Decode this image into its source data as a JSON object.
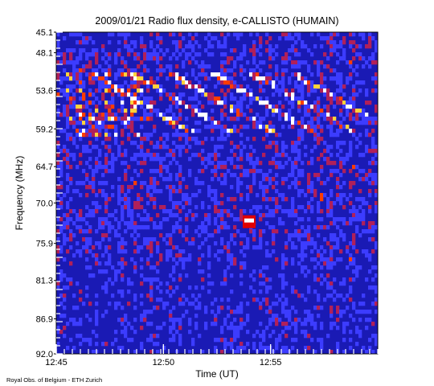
{
  "chart_data": {
    "type": "heatmap",
    "title": "2009/01/21  Radio flux density, e-CALLISTO (HUMAIN)",
    "xlabel": "Time (UT)",
    "ylabel": "Frequency (MHz)",
    "credit": "Royal Obs. of Belgium - ETH Zurich",
    "x_tick_labels": [
      "12:45",
      "12:50",
      "12:55"
    ],
    "x_tick_values_min": [
      0,
      5,
      10
    ],
    "xlim_min": [
      0,
      15
    ],
    "y_tick_labels": [
      "45.1",
      "48.1",
      "53.6",
      "59.2",
      "64.7",
      "70.0",
      "75.9",
      "81.3",
      "86.9",
      "92.0"
    ],
    "y_tick_values": [
      45.1,
      48.1,
      53.6,
      59.2,
      64.7,
      70.0,
      75.9,
      81.3,
      86.9,
      92.0
    ],
    "ylim": [
      45.1,
      92.0
    ],
    "y_inverted": true,
    "colormap": [
      "#000000",
      "#1414c8",
      "#3c3cff",
      "#b0205a",
      "#ff3c00",
      "#ffd23c",
      "#ffffff"
    ],
    "features": [
      {
        "name": "drifting bursts",
        "time_min": [
          1.5,
          14.5
        ],
        "freq_mhz": [
          51.5,
          59.5
        ]
      },
      {
        "name": "bright band",
        "time_min": [
          0.5,
          4.5
        ],
        "freq_mhz": [
          58.5,
          60.0
        ]
      },
      {
        "name": "spike",
        "time_min": 9.0,
        "freq_mhz": 72.5
      }
    ]
  }
}
